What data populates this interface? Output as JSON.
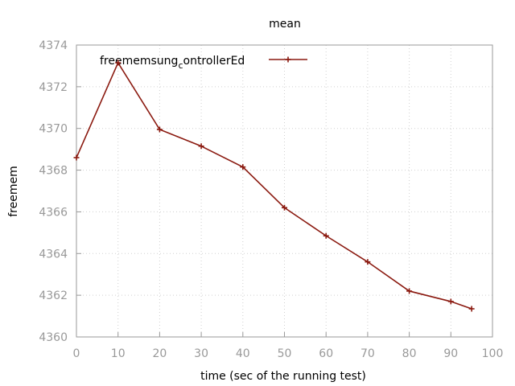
{
  "chart_data": {
    "type": "line",
    "title": "mean",
    "xlabel": "time (sec of the running test)",
    "ylabel": "freemem",
    "xlim": [
      0,
      100
    ],
    "ylim": [
      4360,
      4374
    ],
    "x_ticks": [
      "0",
      "10",
      "20",
      "30",
      "40",
      "50",
      "60",
      "70",
      "80",
      "90",
      "100"
    ],
    "y_ticks": [
      "4360",
      "4362",
      "4364",
      "4366",
      "4368",
      "4370",
      "4372",
      "4374"
    ],
    "grid": true,
    "legend_position": "top-left",
    "legend_label_prefix": "freemem",
    "legend_label_mid": "sung",
    "legend_label_sub": "c",
    "legend_label_suffix": "ontrollerEd",
    "series": [
      {
        "name": "freememsung_controllerEd",
        "color": "#8b1a10",
        "marker": "plus",
        "x": [
          0,
          10,
          20,
          30,
          40,
          50,
          60,
          70,
          80,
          90,
          95
        ],
        "y": [
          4368.6,
          4373.15,
          4369.95,
          4369.15,
          4368.15,
          4366.2,
          4364.85,
          4363.6,
          4362.2,
          4361.7,
          4361.35
        ]
      }
    ]
  }
}
